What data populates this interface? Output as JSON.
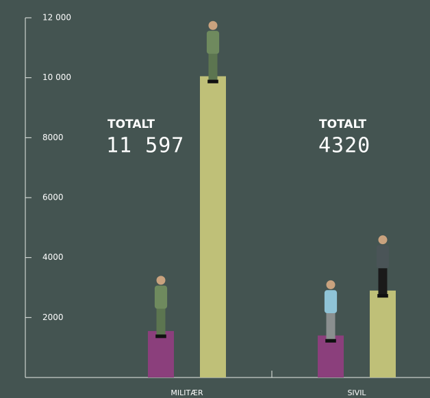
{
  "chart_data": {
    "type": "bar",
    "categories": [
      "MILITÆR",
      "SIVIL"
    ],
    "series": [
      {
        "color": "#8b3f7c",
        "values": [
          1550,
          1400
        ]
      },
      {
        "color": "#bfc078",
        "values": [
          10050,
          2900
        ]
      }
    ],
    "ylim": [
      0,
      12000
    ],
    "yticks": [
      2000,
      4000,
      6000,
      8000,
      {
        "value": 10000,
        "label": "10 000"
      },
      {
        "value": 12000,
        "label": "12 000"
      }
    ],
    "annotations": [
      {
        "label": "TOTALT",
        "text": "11 597"
      },
      {
        "label": "TOTALT",
        "text": "4320"
      }
    ]
  }
}
